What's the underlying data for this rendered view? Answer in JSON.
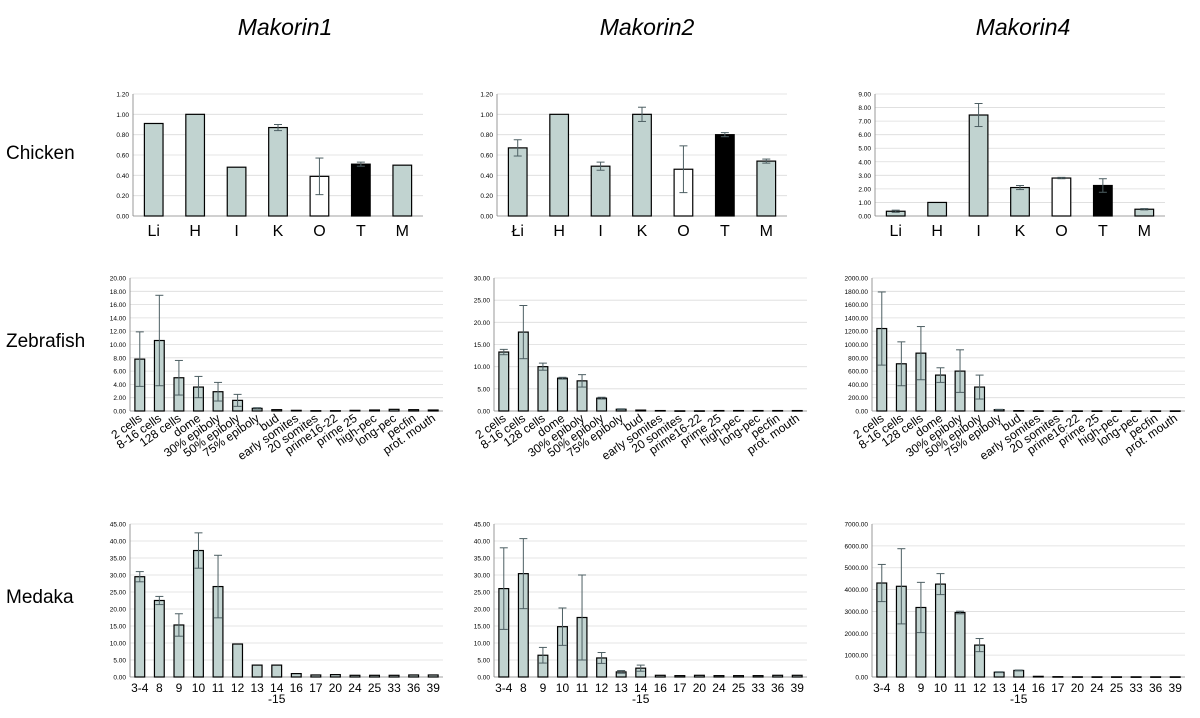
{
  "column_titles": [
    "Makorin1",
    "Makorin2",
    "Makorin4"
  ],
  "row_labels": [
    "Chicken",
    "Zebrafish",
    "Medaka"
  ],
  "colors": {
    "bar_gray": "#c1d3d0",
    "bar_white": "#ffffff",
    "bar_black": "#000000",
    "error": "#4d5f63",
    "grid": "#dcdcdc"
  },
  "chart_data": [
    {
      "id": "chicken-makorin1",
      "type": "bar",
      "ylim": [
        0,
        1.2
      ],
      "yticks": [
        "0.00",
        "0.20",
        "0.40",
        "0.60",
        "0.80",
        "1.00",
        "1.20"
      ],
      "categories": [
        "Li",
        "H",
        "I",
        "K",
        "O",
        "T",
        "M"
      ],
      "values": [
        0.91,
        1.0,
        0.48,
        0.87,
        0.39,
        0.51,
        0.5
      ],
      "errors": [
        0,
        0,
        0,
        0.03,
        0.18,
        0.02,
        0
      ],
      "fills": [
        "gray",
        "gray",
        "gray",
        "gray",
        "white",
        "black",
        "gray"
      ]
    },
    {
      "id": "chicken-makorin2",
      "type": "bar",
      "ylim": [
        0,
        1.2
      ],
      "yticks": [
        "0.00",
        "0.20",
        "0.40",
        "0.60",
        "0.80",
        "1.00",
        "1.20"
      ],
      "categories": [
        "Łi",
        "H",
        "I",
        "K",
        "O",
        "T",
        "M"
      ],
      "values": [
        0.67,
        1.0,
        0.49,
        1.0,
        0.46,
        0.8,
        0.54
      ],
      "errors": [
        0.08,
        0,
        0.04,
        0.07,
        0.23,
        0.02,
        0.02
      ],
      "fills": [
        "gray",
        "gray",
        "gray",
        "gray",
        "white",
        "black",
        "gray"
      ]
    },
    {
      "id": "chicken-makorin4",
      "type": "bar",
      "ylim": [
        0,
        9
      ],
      "yticks": [
        "0.00",
        "1.00",
        "2.00",
        "3.00",
        "4.00",
        "5.00",
        "6.00",
        "7.00",
        "8.00",
        "9.00"
      ],
      "categories": [
        "Li",
        "H",
        "I",
        "K",
        "O",
        "T",
        "M"
      ],
      "values": [
        0.35,
        1.0,
        7.45,
        2.1,
        2.8,
        2.25,
        0.5
      ],
      "errors": [
        0.08,
        0,
        0.85,
        0.15,
        0.05,
        0.5,
        0.05
      ],
      "fills": [
        "gray",
        "gray",
        "gray",
        "gray",
        "white",
        "black",
        "gray"
      ]
    },
    {
      "id": "zebrafish-makorin1",
      "type": "bar",
      "ylim": [
        0,
        20
      ],
      "yticks": [
        "0.00",
        "2.00",
        "4.00",
        "6.00",
        "8.00",
        "10.00",
        "12.00",
        "14.00",
        "16.00",
        "18.00",
        "20.00"
      ],
      "categories": [
        "2 cells",
        "8-16 cells",
        "128 cells",
        "dome",
        "30% epiboly",
        "50% epiboly",
        "75% epiboly",
        "bud",
        "early somites",
        "20 somites",
        "prime16-22",
        "prime 25",
        "high-pec",
        "long-pec",
        "pecfin",
        "prot. mouth"
      ],
      "values": [
        7.8,
        10.6,
        5.0,
        3.6,
        2.9,
        1.6,
        0.4,
        0.2,
        0.1,
        0.05,
        0.05,
        0.1,
        0.15,
        0.25,
        0.2,
        0.15
      ],
      "errors": [
        4.1,
        6.8,
        2.6,
        1.6,
        1.4,
        0.9,
        0.1,
        0,
        0,
        0,
        0,
        0,
        0,
        0,
        0,
        0
      ]
    },
    {
      "id": "zebrafish-makorin2",
      "type": "bar",
      "ylim": [
        0,
        30
      ],
      "yticks": [
        "0.00",
        "5.00",
        "10.00",
        "15.00",
        "20.00",
        "25.00",
        "30.00"
      ],
      "categories": [
        "2 cells",
        "8-16 cells",
        "128 cells",
        "dome",
        "30% epiboly",
        "50% epiboly",
        "75% epiboly",
        "bud",
        "early somites",
        "20 somites",
        "prime16-22",
        "prime 25",
        "high-pec",
        "long-pec",
        "pecfin",
        "prot. mouth"
      ],
      "values": [
        13.3,
        17.8,
        10.0,
        7.4,
        6.8,
        2.9,
        0.4,
        0.2,
        0.1,
        0.05,
        0.05,
        0.1,
        0.1,
        0.1,
        0.1,
        0.1
      ],
      "errors": [
        0.6,
        6.0,
        0.8,
        0.2,
        1.4,
        0.2,
        0.1,
        0,
        0,
        0,
        0,
        0,
        0,
        0,
        0,
        0
      ]
    },
    {
      "id": "zebrafish-makorin4",
      "type": "bar",
      "ylim": [
        0,
        2000
      ],
      "yticks": [
        "0.00",
        "200.00",
        "400.00",
        "600.00",
        "800.00",
        "1000.00",
        "1200.00",
        "1400.00",
        "1600.00",
        "1800.00",
        "2000.00"
      ],
      "categories": [
        "2 cells",
        "8-16 cells",
        "128 cells",
        "dome",
        "30% epiboly",
        "50% epiboly",
        "75% epiboly",
        "bud",
        "early somites",
        "20 somites",
        "prime16-22",
        "prime 25",
        "high-pec",
        "long-pec",
        "pecfin",
        "prot. mouth"
      ],
      "values": [
        1240,
        710,
        870,
        540,
        600,
        360,
        20,
        5,
        3,
        2,
        2,
        2,
        2,
        2,
        2,
        2
      ],
      "errors": [
        550,
        330,
        400,
        110,
        320,
        180,
        5,
        0,
        0,
        0,
        0,
        0,
        0,
        0,
        0,
        0
      ]
    },
    {
      "id": "medaka-makorin1",
      "type": "bar",
      "ylim": [
        0,
        45
      ],
      "yticks": [
        "0.00",
        "5.00",
        "10.00",
        "15.00",
        "20.00",
        "25.00",
        "30.00",
        "35.00",
        "40.00",
        "45.00"
      ],
      "categories": [
        "3-4",
        "8",
        "9",
        "10",
        "11",
        "12",
        "13",
        "14\n-15",
        "16",
        "17",
        "20",
        "24",
        "25",
        "33",
        "36",
        "39"
      ],
      "values": [
        29.5,
        22.5,
        15.3,
        37.2,
        26.6,
        9.7,
        3.5,
        3.5,
        1.0,
        0.6,
        0.7,
        0.5,
        0.5,
        0.5,
        0.6,
        0.6
      ],
      "errors": [
        1.5,
        1.2,
        3.3,
        5.2,
        9.2,
        0,
        0,
        0,
        0,
        0,
        0,
        0,
        0,
        0,
        0,
        0
      ]
    },
    {
      "id": "medaka-makorin2",
      "type": "bar",
      "ylim": [
        0,
        45
      ],
      "yticks": [
        "0.00",
        "5.00",
        "10.00",
        "15.00",
        "20.00",
        "25.00",
        "30.00",
        "35.00",
        "40.00",
        "45.00"
      ],
      "categories": [
        "3-4",
        "8",
        "9",
        "10",
        "11",
        "12",
        "13",
        "14\n-15",
        "16",
        "17",
        "20",
        "24",
        "25",
        "33",
        "36",
        "39"
      ],
      "values": [
        26.0,
        30.4,
        6.4,
        14.8,
        17.5,
        5.6,
        1.5,
        2.6,
        0.5,
        0.4,
        0.5,
        0.4,
        0.4,
        0.4,
        0.5,
        0.5
      ],
      "errors": [
        12.0,
        10.3,
        2.3,
        5.5,
        12.5,
        1.6,
        0.4,
        0.9,
        0,
        0,
        0,
        0,
        0,
        0,
        0,
        0
      ]
    },
    {
      "id": "medaka-makorin4",
      "type": "bar",
      "ylim": [
        0,
        7000
      ],
      "yticks": [
        "0.00",
        "1000.00",
        "2000.00",
        "3000.00",
        "4000.00",
        "5000.00",
        "6000.00",
        "7000.00"
      ],
      "categories": [
        "3-4",
        "8",
        "9",
        "10",
        "11",
        "12",
        "13",
        "14\n-15",
        "16",
        "17",
        "20",
        "24",
        "25",
        "33",
        "36",
        "39"
      ],
      "values": [
        4300,
        4150,
        3180,
        4250,
        2950,
        1460,
        220,
        300,
        30,
        15,
        10,
        8,
        8,
        8,
        8,
        8
      ],
      "errors": [
        850,
        1720,
        1150,
        480,
        60,
        300,
        20,
        20,
        0,
        0,
        0,
        0,
        0,
        0,
        0,
        0
      ]
    }
  ]
}
